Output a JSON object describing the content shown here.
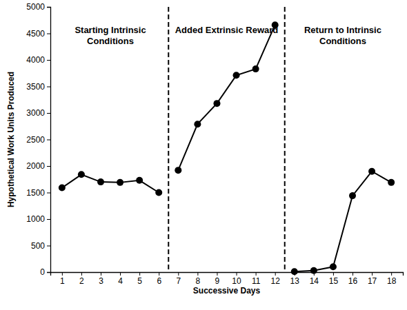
{
  "chart_data": {
    "type": "line",
    "x_label": "Successive Days",
    "y_label": "Hypothetical Work Units Produced",
    "x": [
      1,
      2,
      3,
      4,
      5,
      6,
      7,
      8,
      9,
      10,
      11,
      12,
      13,
      14,
      15,
      16,
      17,
      18
    ],
    "series": [
      {
        "color": "#000000",
        "marker": "circle",
        "line_style": "solid",
        "values": [
          1590,
          1840,
          1700,
          1690,
          1730,
          1500,
          null,
          null,
          null,
          null,
          null,
          null,
          null,
          null,
          null,
          null,
          null,
          null
        ]
      },
      {
        "color": "#000000",
        "marker": "circle",
        "line_style": "solid",
        "values": [
          null,
          null,
          null,
          null,
          null,
          null,
          1920,
          2790,
          3180,
          3710,
          3830,
          4660,
          null,
          null,
          null,
          null,
          null,
          null
        ]
      },
      {
        "color": "#000000",
        "marker": "circle",
        "line_style": "solid",
        "values": [
          null,
          null,
          null,
          null,
          null,
          null,
          null,
          null,
          null,
          null,
          null,
          null,
          10,
          30,
          100,
          1440,
          1900,
          1690
        ]
      }
    ],
    "phases": [
      {
        "label": "Starting Intrinsic Conditions",
        "start": 1,
        "end": 6
      },
      {
        "label": "Added Extrinsic Reward",
        "start": 7,
        "end": 12
      },
      {
        "label": "Return to Intrinsic Conditions",
        "start": 13,
        "end": 18
      }
    ],
    "xlim": [
      0.4,
      18.6
    ],
    "ylim": [
      0,
      5000
    ],
    "xticks": [
      1,
      2,
      3,
      4,
      5,
      6,
      7,
      8,
      9,
      10,
      11,
      12,
      13,
      14,
      15,
      16,
      17,
      18
    ],
    "yticks": [
      0,
      500,
      1000,
      1500,
      2000,
      2500,
      3000,
      3500,
      4000,
      4500,
      5000
    ],
    "grid": false
  }
}
